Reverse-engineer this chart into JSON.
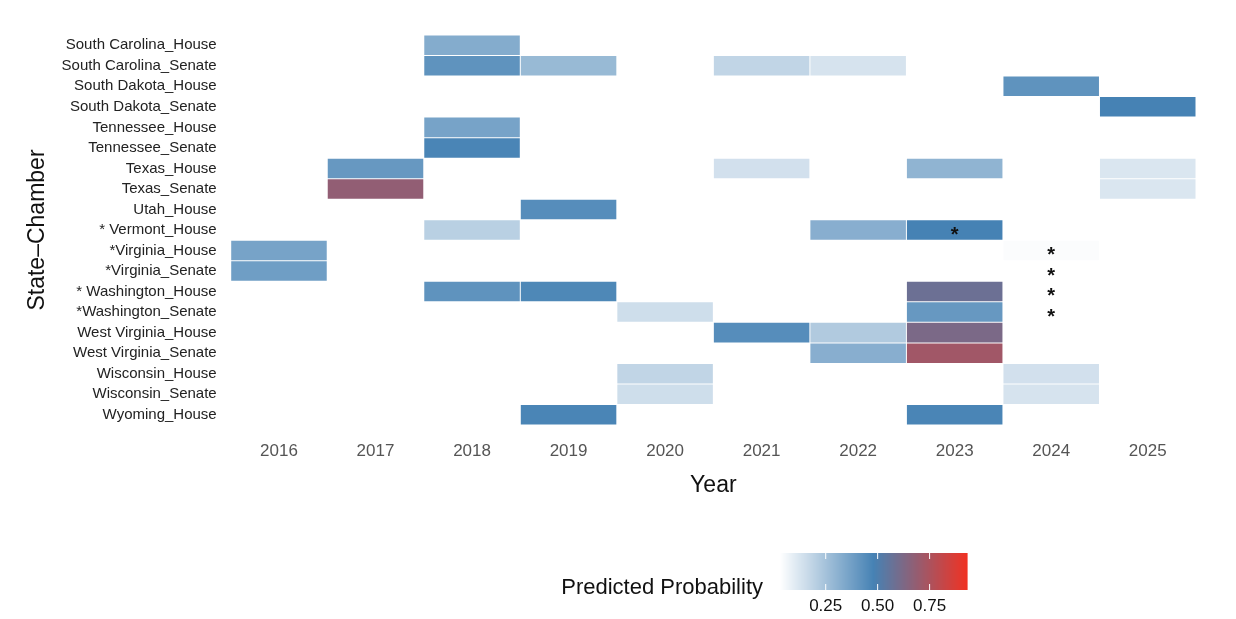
{
  "chart_data": {
    "type": "heatmap",
    "xlabel": "Year",
    "ylabel": "State–Chamber",
    "clabel": "Predicted Probability",
    "categories": [
      "2016",
      "2017",
      "2018",
      "2019",
      "2020",
      "2021",
      "2022",
      "2023",
      "2024",
      "2025"
    ],
    "y_categories": [
      "South Carolina_House",
      "South Carolina_Senate",
      "South Dakota_House",
      "South Dakota_Senate",
      "Tennessee_House",
      "Tennessee_Senate",
      "Texas_House",
      "Texas_Senate",
      "Utah_House",
      "* Vermont_House",
      "*Virginia_House",
      "*Virginia_Senate",
      "* Washington_House",
      "*Washington_Senate",
      "West Virginia_House",
      "West Virginia_Senate",
      "Wisconsin_House",
      "Wisconsin_Senate",
      "Wyoming_House"
    ],
    "cells": [
      [
        null,
        null,
        0.33,
        null,
        null,
        null,
        null,
        null,
        null,
        null
      ],
      [
        null,
        null,
        0.42,
        0.28,
        null,
        0.18,
        0.13,
        null,
        null,
        null
      ],
      [
        null,
        null,
        null,
        null,
        null,
        null,
        null,
        null,
        0.42,
        null
      ],
      [
        null,
        null,
        null,
        null,
        null,
        null,
        null,
        null,
        null,
        0.48
      ],
      [
        null,
        null,
        0.36,
        null,
        null,
        null,
        null,
        null,
        null,
        null
      ],
      [
        null,
        null,
        0.47,
        null,
        null,
        null,
        null,
        null,
        null,
        null
      ],
      [
        null,
        0.4,
        null,
        null,
        null,
        0.14,
        null,
        0.3,
        null,
        0.12
      ],
      [
        null,
        0.68,
        null,
        null,
        null,
        null,
        null,
        null,
        null,
        0.12
      ],
      [
        null,
        null,
        null,
        0.44,
        null,
        null,
        null,
        null,
        null,
        null
      ],
      [
        null,
        null,
        0.2,
        null,
        null,
        null,
        0.32,
        0.48,
        null,
        null
      ],
      [
        0.36,
        null,
        null,
        null,
        null,
        null,
        null,
        null,
        0.04,
        null
      ],
      [
        0.38,
        null,
        null,
        null,
        null,
        null,
        null,
        null,
        null,
        null
      ],
      [
        null,
        null,
        0.42,
        0.46,
        null,
        null,
        null,
        0.58,
        null,
        null
      ],
      [
        null,
        null,
        null,
        null,
        0.15,
        null,
        null,
        0.4,
        null,
        null
      ],
      [
        null,
        null,
        null,
        null,
        null,
        0.44,
        0.22,
        0.62,
        null,
        null
      ],
      [
        null,
        null,
        null,
        null,
        null,
        null,
        0.32,
        0.72,
        null,
        null
      ],
      [
        null,
        null,
        null,
        null,
        0.18,
        null,
        null,
        null,
        0.14,
        null
      ],
      [
        null,
        null,
        null,
        null,
        0.15,
        null,
        null,
        null,
        0.13,
        null
      ],
      [
        null,
        null,
        null,
        0.47,
        null,
        null,
        null,
        0.47,
        null,
        null
      ]
    ],
    "cell_labels": [
      [
        null,
        null,
        null,
        null,
        null,
        null,
        null,
        null,
        null,
        null
      ],
      [
        null,
        null,
        null,
        null,
        null,
        null,
        null,
        null,
        null,
        null
      ],
      [
        null,
        null,
        null,
        null,
        null,
        null,
        null,
        null,
        null,
        null
      ],
      [
        null,
        null,
        null,
        null,
        null,
        null,
        null,
        null,
        null,
        null
      ],
      [
        null,
        null,
        null,
        null,
        null,
        null,
        null,
        null,
        null,
        null
      ],
      [
        null,
        null,
        null,
        null,
        null,
        null,
        null,
        null,
        null,
        null
      ],
      [
        null,
        null,
        null,
        null,
        null,
        null,
        null,
        null,
        null,
        null
      ],
      [
        null,
        null,
        null,
        null,
        null,
        null,
        null,
        null,
        null,
        null
      ],
      [
        null,
        null,
        null,
        null,
        null,
        null,
        null,
        null,
        null,
        null
      ],
      [
        null,
        null,
        null,
        null,
        null,
        null,
        null,
        "*",
        null,
        null
      ],
      [
        null,
        null,
        null,
        null,
        null,
        null,
        null,
        null,
        "*",
        null
      ],
      [
        null,
        null,
        null,
        null,
        null,
        null,
        null,
        null,
        "*",
        null
      ],
      [
        null,
        null,
        null,
        null,
        null,
        null,
        null,
        null,
        "*",
        null
      ],
      [
        null,
        null,
        null,
        null,
        null,
        null,
        null,
        null,
        "*",
        null
      ],
      [
        null,
        null,
        null,
        null,
        null,
        null,
        null,
        null,
        null,
        null
      ],
      [
        null,
        null,
        null,
        null,
        null,
        null,
        null,
        null,
        null,
        null
      ],
      [
        null,
        null,
        null,
        null,
        null,
        null,
        null,
        null,
        null,
        null
      ],
      [
        null,
        null,
        null,
        null,
        null,
        null,
        null,
        null,
        null,
        null
      ],
      [
        null,
        null,
        null,
        null,
        null,
        null,
        null,
        null,
        null,
        null
      ]
    ],
    "clim": [
      0.03,
      0.93
    ],
    "cticks": [
      0.25,
      {
        "value": 0.5,
        "label": "0.50"
      },
      0.75
    ]
  }
}
